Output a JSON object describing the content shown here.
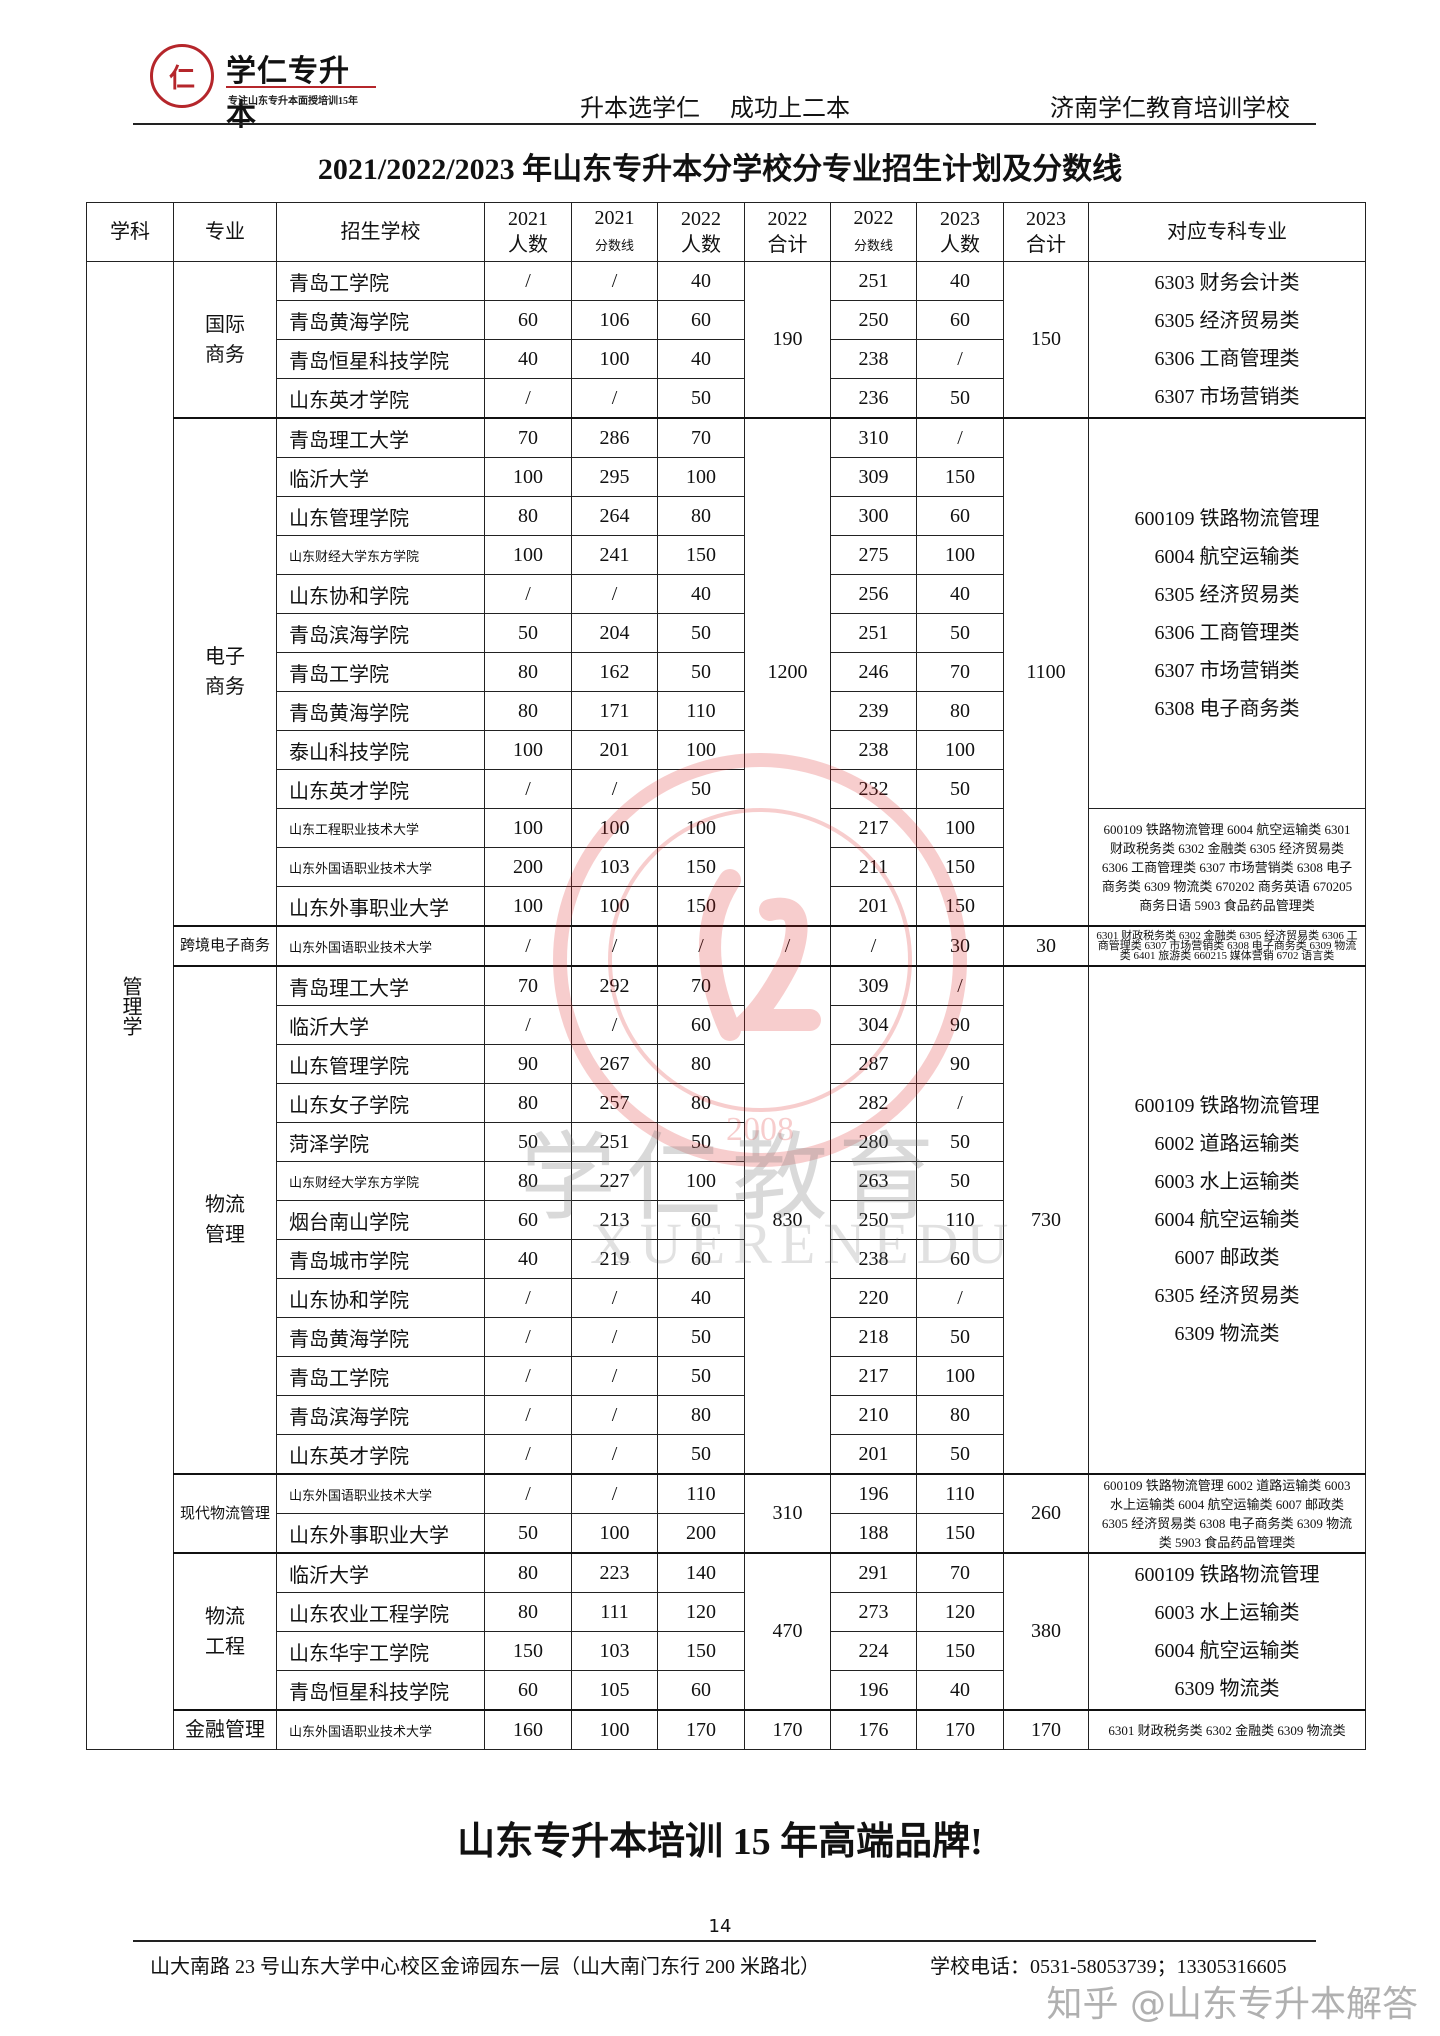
{
  "header": {
    "logo_text": "学仁专升本",
    "logo_tagline": "专注山东专升本面授培训15年",
    "logo_seal_char": "仁",
    "slogan": "升本选学仁 成功上二本",
    "school": "济南学仁教育培训学校"
  },
  "title": "2021/2022/2023 年山东专升本分学校分专业招生计划及分数线",
  "table": {
    "headers": {
      "subject": "学科",
      "major": "专业",
      "school": "招生学校",
      "n2021": [
        "2021",
        "人数"
      ],
      "s2021": [
        "2021",
        "分数线"
      ],
      "n2022": [
        "2022",
        "人数"
      ],
      "t2022": [
        "2022",
        "合计"
      ],
      "s2022": [
        "2022",
        "分数线"
      ],
      "n2023": [
        "2023",
        "人数"
      ],
      "t2023": [
        "2023",
        "合计"
      ],
      "majors": "对应专科专业"
    },
    "subject": "管理学",
    "groups": [
      {
        "major": "国际商务",
        "total2022": "190",
        "total2023": "150",
        "majors_blocks": [
          {
            "span": 4,
            "lines": [
              "6303 财务会计类",
              "6305 经济贸易类",
              "6306 工商管理类",
              "6307 市场营销类"
            ]
          }
        ],
        "rows": [
          {
            "school": "青岛工学院",
            "n2021": "/",
            "s2021": "/",
            "n2022": "40",
            "s2022": "251",
            "n2023": "40"
          },
          {
            "school": "青岛黄海学院",
            "n2021": "60",
            "s2021": "106",
            "n2022": "60",
            "s2022": "250",
            "n2023": "60"
          },
          {
            "school": "青岛恒星科技学院",
            "n2021": "40",
            "s2021": "100",
            "n2022": "40",
            "s2022": "238",
            "n2023": "/"
          },
          {
            "school": "山东英才学院",
            "n2021": "/",
            "s2021": "/",
            "n2022": "50",
            "s2022": "236",
            "n2023": "50"
          }
        ]
      },
      {
        "major": "电子商务",
        "total2022": "1200",
        "total2023": "1100",
        "majors_blocks": [
          {
            "span": 10,
            "lines": [
              "600109 铁路物流管理",
              "6004 航空运输类",
              "6305 经济贸易类",
              "6306 工商管理类",
              "6307 市场营销类",
              "6308 电子商务类"
            ]
          },
          {
            "span": 3,
            "text": "600109 铁路物流管理 6004 航空运输类 6301 财政税务类 6302 金融类 6305 经济贸易类 6306 工商管理类 6307 市场营销类 6308 电子商务类 6309 物流类 670202 商务英语 670205 商务日语 5903 食品药品管理类"
          }
        ],
        "rows": [
          {
            "school": "青岛理工大学",
            "n2021": "70",
            "s2021": "286",
            "n2022": "70",
            "s2022": "310",
            "n2023": "/"
          },
          {
            "school": "临沂大学",
            "n2021": "100",
            "s2021": "295",
            "n2022": "100",
            "s2022": "309",
            "n2023": "150"
          },
          {
            "school": "山东管理学院",
            "n2021": "80",
            "s2021": "264",
            "n2022": "80",
            "s2022": "300",
            "n2023": "60"
          },
          {
            "school": "山东财经大学东方学院",
            "n2021": "100",
            "s2021": "241",
            "n2022": "150",
            "s2022": "275",
            "n2023": "100"
          },
          {
            "school": "山东协和学院",
            "n2021": "/",
            "s2021": "/",
            "n2022": "40",
            "s2022": "256",
            "n2023": "40"
          },
          {
            "school": "青岛滨海学院",
            "n2021": "50",
            "s2021": "204",
            "n2022": "50",
            "s2022": "251",
            "n2023": "50"
          },
          {
            "school": "青岛工学院",
            "n2021": "80",
            "s2021": "162",
            "n2022": "50",
            "s2022": "246",
            "n2023": "70"
          },
          {
            "school": "青岛黄海学院",
            "n2021": "80",
            "s2021": "171",
            "n2022": "110",
            "s2022": "239",
            "n2023": "80"
          },
          {
            "school": "泰山科技学院",
            "n2021": "100",
            "s2021": "201",
            "n2022": "100",
            "s2022": "238",
            "n2023": "100"
          },
          {
            "school": "山东英才学院",
            "n2021": "/",
            "s2021": "/",
            "n2022": "50",
            "s2022": "232",
            "n2023": "50"
          },
          {
            "school": "山东工程职业技术大学",
            "n2021": "100",
            "s2021": "100",
            "n2022": "100",
            "s2022": "217",
            "n2023": "100"
          },
          {
            "school": "山东外国语职业技术大学",
            "n2021": "200",
            "s2021": "103",
            "n2022": "150",
            "s2022": "211",
            "n2023": "150"
          },
          {
            "school": "山东外事职业大学",
            "n2021": "100",
            "s2021": "100",
            "n2022": "150",
            "s2022": "201",
            "n2023": "150"
          }
        ]
      },
      {
        "major": "跨境电子商务",
        "total2022": "/",
        "total2023": "30",
        "majors_blocks": [
          {
            "span": 1,
            "tiny": true,
            "text": "6301 财政税务类 6302 金融类 6305 经济贸易类 6306 工商管理类 6307 市场营销类 6308 电子商务类 6309 物流类 6401 旅游类 660215 媒体营销 6702 语言类"
          }
        ],
        "rows": [
          {
            "school": "山东外国语职业技术大学",
            "n2021": "/",
            "s2021": "/",
            "n2022": "/",
            "s2022": "/",
            "n2023": "30"
          }
        ]
      },
      {
        "major": "物流管理",
        "total2022": "830",
        "total2023": "730",
        "majors_blocks": [
          {
            "span": 13,
            "lines": [
              "600109 铁路物流管理",
              "6002 道路运输类",
              "6003 水上运输类",
              "6004 航空运输类",
              "6007 邮政类",
              "6305 经济贸易类",
              "6309 物流类"
            ]
          }
        ],
        "rows": [
          {
            "school": "青岛理工大学",
            "n2021": "70",
            "s2021": "292",
            "n2022": "70",
            "s2022": "309",
            "n2023": "/"
          },
          {
            "school": "临沂大学",
            "n2021": "/",
            "s2021": "/",
            "n2022": "60",
            "s2022": "304",
            "n2023": "90"
          },
          {
            "school": "山东管理学院",
            "n2021": "90",
            "s2021": "267",
            "n2022": "80",
            "s2022": "287",
            "n2023": "90"
          },
          {
            "school": "山东女子学院",
            "n2021": "80",
            "s2021": "257",
            "n2022": "80",
            "s2022": "282",
            "n2023": "/"
          },
          {
            "school": "菏泽学院",
            "n2021": "50",
            "s2021": "251",
            "n2022": "50",
            "s2022": "280",
            "n2023": "50"
          },
          {
            "school": "山东财经大学东方学院",
            "n2021": "80",
            "s2021": "227",
            "n2022": "100",
            "s2022": "263",
            "n2023": "50"
          },
          {
            "school": "烟台南山学院",
            "n2021": "60",
            "s2021": "213",
            "n2022": "60",
            "s2022": "250",
            "n2023": "110"
          },
          {
            "school": "青岛城市学院",
            "n2021": "40",
            "s2021": "219",
            "n2022": "60",
            "s2022": "238",
            "n2023": "60"
          },
          {
            "school": "山东协和学院",
            "n2021": "/",
            "s2021": "/",
            "n2022": "40",
            "s2022": "220",
            "n2023": "/"
          },
          {
            "school": "青岛黄海学院",
            "n2021": "/",
            "s2021": "/",
            "n2022": "50",
            "s2022": "218",
            "n2023": "50"
          },
          {
            "school": "青岛工学院",
            "n2021": "/",
            "s2021": "/",
            "n2022": "50",
            "s2022": "217",
            "n2023": "100"
          },
          {
            "school": "青岛滨海学院",
            "n2021": "/",
            "s2021": "/",
            "n2022": "80",
            "s2022": "210",
            "n2023": "80"
          },
          {
            "school": "山东英才学院",
            "n2021": "/",
            "s2021": "/",
            "n2022": "50",
            "s2022": "201",
            "n2023": "50"
          }
        ]
      },
      {
        "major": "现代物流管理",
        "total2022": "310",
        "total2023": "260",
        "majors_blocks": [
          {
            "span": 2,
            "text": "600109 铁路物流管理 6002 道路运输类 6003 水上运输类 6004 航空运输类 6007 邮政类 6305 经济贸易类 6308 电子商务类 6309 物流类 5903 食品药品管理类"
          }
        ],
        "rows": [
          {
            "school": "山东外国语职业技术大学",
            "n2021": "/",
            "s2021": "/",
            "n2022": "110",
            "s2022": "196",
            "n2023": "110"
          },
          {
            "school": "山东外事职业大学",
            "n2021": "50",
            "s2021": "100",
            "n2022": "200",
            "s2022": "188",
            "n2023": "150"
          }
        ]
      },
      {
        "major": "物流工程",
        "total2022": "470",
        "total2023": "380",
        "majors_blocks": [
          {
            "span": 4,
            "lines": [
              "600109 铁路物流管理",
              "6003 水上运输类",
              "6004 航空运输类",
              "6309 物流类"
            ]
          }
        ],
        "rows": [
          {
            "school": "临沂大学",
            "n2021": "80",
            "s2021": "223",
            "n2022": "140",
            "s2022": "291",
            "n2023": "70"
          },
          {
            "school": "山东农业工程学院",
            "n2021": "80",
            "s2021": "111",
            "n2022": "120",
            "s2022": "273",
            "n2023": "120"
          },
          {
            "school": "山东华宇工学院",
            "n2021": "150",
            "s2021": "103",
            "n2022": "150",
            "s2022": "224",
            "n2023": "150"
          },
          {
            "school": "青岛恒星科技学院",
            "n2021": "60",
            "s2021": "105",
            "n2022": "60",
            "s2022": "196",
            "n2023": "40"
          }
        ]
      },
      {
        "major": "金融管理",
        "total2022": "170",
        "total2023": "170",
        "majors_blocks": [
          {
            "span": 1,
            "text": "6301 财政税务类 6302 金融类 6309 物流类"
          }
        ],
        "rows": [
          {
            "school": "山东外国语职业技术大学",
            "n2021": "160",
            "s2021": "100",
            "n2022": "170",
            "s2022": "176",
            "n2023": "170"
          }
        ]
      }
    ]
  },
  "watermark": {
    "cn": "学仁教育",
    "en": "XUERENEDU",
    "seal_year": "2008"
  },
  "footer": {
    "brand": "山东专升本培训 15 年高端品牌!",
    "page": "14",
    "address": "山大南路 23 号山东大学中心校区金谛园东一层（山大南门东行 200 米路北）",
    "phone": "学校电话：0531-58053739；13305316605",
    "zhihu": "知乎 @山东专升本解答"
  },
  "colors": {
    "brand_red": "#b5262b",
    "text": "#111111"
  }
}
